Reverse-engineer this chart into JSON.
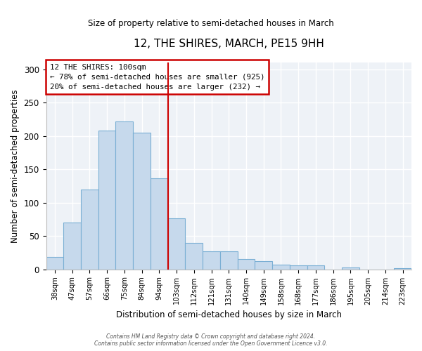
{
  "title": "12, THE SHIRES, MARCH, PE15 9HH",
  "subtitle": "Size of property relative to semi-detached houses in March",
  "xlabel": "Distribution of semi-detached houses by size in March",
  "ylabel": "Number of semi-detached properties",
  "bar_color": "#c6d9ec",
  "bar_edge_color": "#7aafd4",
  "categories": [
    "38sqm",
    "47sqm",
    "57sqm",
    "66sqm",
    "75sqm",
    "84sqm",
    "94sqm",
    "103sqm",
    "112sqm",
    "121sqm",
    "131sqm",
    "140sqm",
    "149sqm",
    "158sqm",
    "168sqm",
    "177sqm",
    "186sqm",
    "195sqm",
    "205sqm",
    "214sqm",
    "223sqm"
  ],
  "values": [
    18,
    70,
    120,
    208,
    222,
    205,
    136,
    76,
    40,
    27,
    27,
    15,
    12,
    7,
    6,
    6,
    0,
    3,
    0,
    0,
    2
  ],
  "vline_color": "#cc0000",
  "annotation_title": "12 THE SHIRES: 100sqm",
  "annotation_line1": "← 78% of semi-detached houses are smaller (925)",
  "annotation_line2": "20% of semi-detached houses are larger (232) →",
  "annotation_box_color": "#cc0000",
  "ylim": [
    0,
    310
  ],
  "yticks": [
    0,
    50,
    100,
    150,
    200,
    250,
    300
  ],
  "footer1": "Contains HM Land Registry data © Crown copyright and database right 2024.",
  "footer2": "Contains public sector information licensed under the Open Government Licence v3.0.",
  "background_color": "#eef2f7"
}
